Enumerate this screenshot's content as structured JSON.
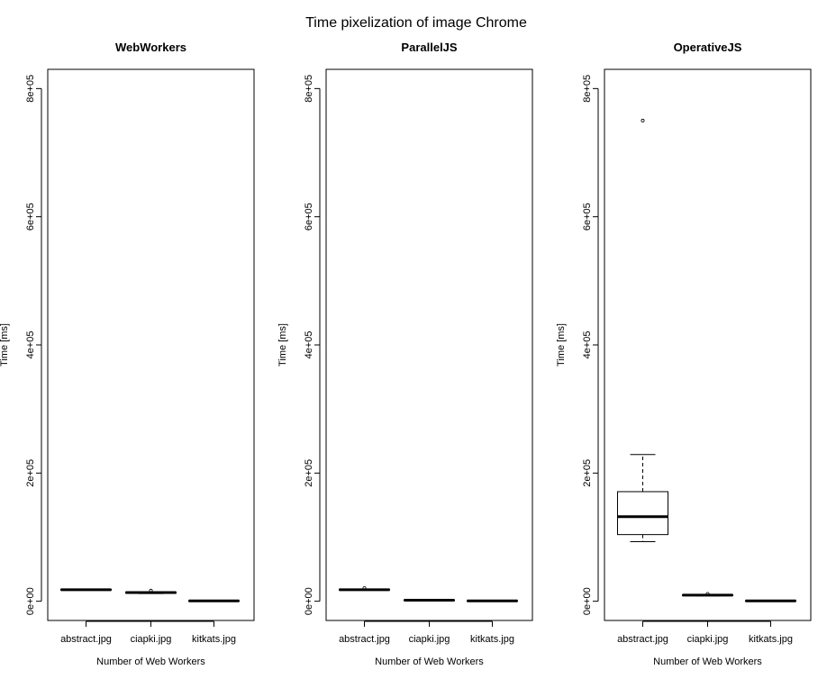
{
  "figure": {
    "title": "Time pixelization of image Chrome"
  },
  "chart_data": [
    {
      "type": "boxplot",
      "title": "WebWorkers",
      "xlabel": "Number of Web Workers",
      "ylabel": "Time [ms]",
      "ylim": [
        -30000,
        830000
      ],
      "yticks": [
        0,
        200000,
        400000,
        600000,
        800000
      ],
      "ytick_labels": [
        "0e+00",
        "2e+05",
        "4e+05",
        "6e+05",
        "8e+05"
      ],
      "categories": [
        "abstract.jpg",
        "ciapki.jpg",
        "kitkats.jpg"
      ],
      "boxes": [
        {
          "min": 17000,
          "q1": 17500,
          "median": 18000,
          "q3": 18500,
          "max": 19000,
          "outliers": []
        },
        {
          "min": 12000,
          "q1": 12800,
          "median": 13500,
          "q3": 14200,
          "max": 15000,
          "outliers": [
            16500
          ]
        },
        {
          "min": 200,
          "q1": 400,
          "median": 600,
          "q3": 800,
          "max": 1000,
          "outliers": []
        }
      ]
    },
    {
      "type": "boxplot",
      "title": "ParallelJS",
      "xlabel": "Number of Web Workers",
      "ylabel": "Time [ms]",
      "ylim": [
        -30000,
        830000
      ],
      "yticks": [
        0,
        200000,
        400000,
        600000,
        800000
      ],
      "ytick_labels": [
        "0e+00",
        "2e+05",
        "4e+05",
        "6e+05",
        "8e+05"
      ],
      "categories": [
        "abstract.jpg",
        "ciapki.jpg",
        "kitkats.jpg"
      ],
      "boxes": [
        {
          "min": 17000,
          "q1": 17500,
          "median": 18000,
          "q3": 18500,
          "max": 19000,
          "outliers": [
            20500
          ]
        },
        {
          "min": 1000,
          "q1": 1300,
          "median": 1600,
          "q3": 1900,
          "max": 2200,
          "outliers": []
        },
        {
          "min": 200,
          "q1": 400,
          "median": 600,
          "q3": 800,
          "max": 1000,
          "outliers": []
        }
      ]
    },
    {
      "type": "boxplot",
      "title": "OperativeJS",
      "xlabel": "Number of Web Workers",
      "ylabel": "Time [ms]",
      "ylim": [
        -30000,
        830000
      ],
      "yticks": [
        0,
        200000,
        400000,
        600000,
        800000
      ],
      "ytick_labels": [
        "0e+00",
        "2e+05",
        "4e+05",
        "6e+05",
        "8e+05"
      ],
      "categories": [
        "abstract.jpg",
        "ciapki.jpg",
        "kitkats.jpg"
      ],
      "boxes": [
        {
          "min": 93000,
          "q1": 104000,
          "median": 132000,
          "q3": 171000,
          "max": 229000,
          "outliers": [
            750000
          ]
        },
        {
          "min": 8500,
          "q1": 9000,
          "median": 9500,
          "q3": 10000,
          "max": 10500,
          "outliers": [
            11500
          ]
        },
        {
          "min": 200,
          "q1": 400,
          "median": 600,
          "q3": 800,
          "max": 1000,
          "outliers": []
        }
      ]
    }
  ]
}
